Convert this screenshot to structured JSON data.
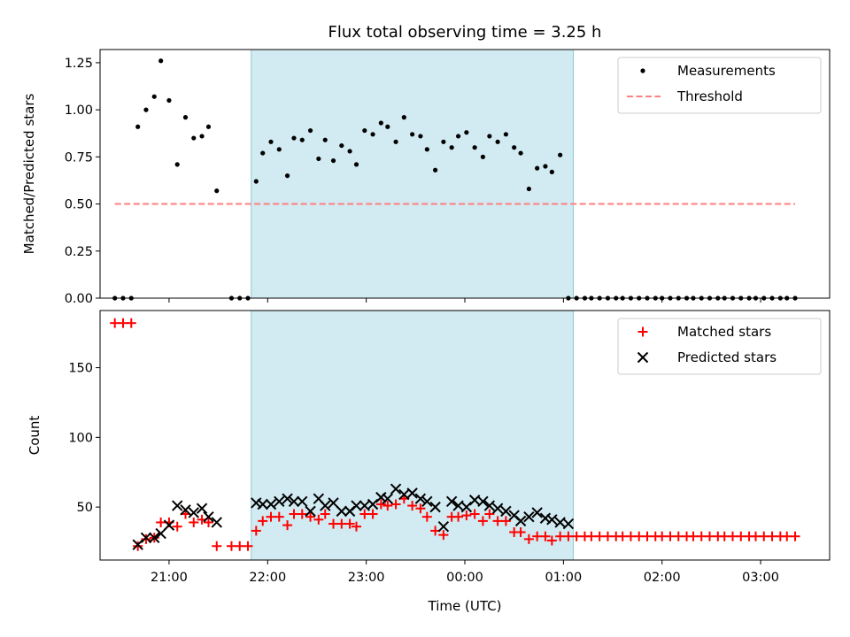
{
  "chart_data": [
    {
      "panel": "top",
      "type": "scatter",
      "title": "Flux total observing time = 3.25 h",
      "xlabel": "",
      "ylabel": "Matched/Predicted stars",
      "ylim": [
        0,
        1.32
      ],
      "yticks": [
        "0.00",
        "0.25",
        "0.50",
        "0.75",
        "1.00",
        "1.25"
      ],
      "xlim": [
        20.3,
        27.7
      ],
      "legend_position": "top-right",
      "shaded_interval": [
        "21:50",
        "01:06"
      ],
      "shade_color": "#add8e6",
      "series": [
        {
          "name": "Measurements",
          "color": "#000000",
          "marker": "dot",
          "points": [
            [
              "20:27",
              0
            ],
            [
              "20:32",
              0
            ],
            [
              "20:37",
              0
            ],
            [
              "20:41",
              0.91
            ],
            [
              "20:46",
              1.0
            ],
            [
              "20:51",
              1.07
            ],
            [
              "20:55",
              1.26
            ],
            [
              "21:00",
              1.05
            ],
            [
              "21:05",
              0.71
            ],
            [
              "21:10",
              0.96
            ],
            [
              "21:15",
              0.85
            ],
            [
              "21:20",
              0.86
            ],
            [
              "21:24",
              0.91
            ],
            [
              "21:29",
              0.57
            ],
            [
              "21:38",
              0
            ],
            [
              "21:43",
              0
            ],
            [
              "21:48",
              0
            ],
            [
              "21:53",
              0.62
            ],
            [
              "21:57",
              0.77
            ],
            [
              "22:02",
              0.83
            ],
            [
              "22:07",
              0.79
            ],
            [
              "22:12",
              0.65
            ],
            [
              "22:16",
              0.85
            ],
            [
              "22:21",
              0.84
            ],
            [
              "22:26",
              0.89
            ],
            [
              "22:31",
              0.74
            ],
            [
              "22:35",
              0.84
            ],
            [
              "22:40",
              0.73
            ],
            [
              "22:45",
              0.81
            ],
            [
              "22:50",
              0.78
            ],
            [
              "22:54",
              0.71
            ],
            [
              "22:59",
              0.89
            ],
            [
              "23:04",
              0.87
            ],
            [
              "23:09",
              0.93
            ],
            [
              "23:13",
              0.91
            ],
            [
              "23:18",
              0.83
            ],
            [
              "23:23",
              0.96
            ],
            [
              "23:28",
              0.87
            ],
            [
              "23:33",
              0.86
            ],
            [
              "23:37",
              0.79
            ],
            [
              "23:42",
              0.68
            ],
            [
              "23:47",
              0.83
            ],
            [
              "23:52",
              0.8
            ],
            [
              "23:56",
              0.86
            ],
            [
              "00:01",
              0.88
            ],
            [
              "00:06",
              0.8
            ],
            [
              "00:11",
              0.75
            ],
            [
              "00:15",
              0.86
            ],
            [
              "00:20",
              0.83
            ],
            [
              "00:25",
              0.87
            ],
            [
              "00:30",
              0.8
            ],
            [
              "00:34",
              0.77
            ],
            [
              "00:39",
              0.58
            ],
            [
              "00:44",
              0.69
            ],
            [
              "00:49",
              0.7
            ],
            [
              "00:53",
              0.67
            ],
            [
              "00:58",
              0.76
            ],
            [
              "01:03",
              0
            ],
            [
              "01:08",
              0
            ],
            [
              "01:13",
              0
            ],
            [
              "01:17",
              0
            ],
            [
              "01:22",
              0
            ],
            [
              "01:27",
              0
            ],
            [
              "01:32",
              0
            ],
            [
              "01:36",
              0
            ],
            [
              "01:41",
              0
            ],
            [
              "01:46",
              0
            ],
            [
              "01:51",
              0
            ],
            [
              "01:56",
              0
            ],
            [
              "02:00",
              0
            ],
            [
              "02:05",
              0
            ],
            [
              "02:10",
              0
            ],
            [
              "02:15",
              0
            ],
            [
              "02:19",
              0
            ],
            [
              "02:24",
              0
            ],
            [
              "02:29",
              0
            ],
            [
              "02:34",
              0
            ],
            [
              "02:38",
              0
            ],
            [
              "02:43",
              0
            ],
            [
              "02:48",
              0
            ],
            [
              "02:53",
              0
            ],
            [
              "02:57",
              0
            ],
            [
              "03:02",
              0
            ],
            [
              "03:07",
              0
            ],
            [
              "03:12",
              0
            ],
            [
              "03:16",
              0
            ],
            [
              "03:21",
              0
            ]
          ]
        },
        {
          "name": "Threshold",
          "color": "#ff7f7f",
          "style": "dashed",
          "points": [
            [
              "20:27",
              0.5
            ],
            [
              "03:21",
              0.5
            ]
          ]
        }
      ]
    },
    {
      "panel": "bottom",
      "type": "scatter",
      "title": "",
      "xlabel": "Time (UTC)",
      "ylabel": "Count",
      "ylim": [
        12,
        191
      ],
      "yticks": [
        "50",
        "100",
        "150"
      ],
      "xticks": [
        "21:00",
        "22:00",
        "23:00",
        "00:00",
        "01:00",
        "02:00",
        "03:00"
      ],
      "xlim": [
        20.3,
        27.7
      ],
      "legend_position": "top-right",
      "shaded_interval": [
        "21:50",
        "01:06"
      ],
      "shade_color": "#add8e6",
      "series": [
        {
          "name": "Matched stars",
          "color": "#ff0000",
          "marker": "plus",
          "points": [
            [
              "20:27",
              182
            ],
            [
              "20:32",
              182
            ],
            [
              "20:37",
              182
            ],
            [
              "20:41",
              22
            ],
            [
              "20:46",
              27
            ],
            [
              "20:51",
              28
            ],
            [
              "20:55",
              39
            ],
            [
              "21:00",
              39
            ],
            [
              "21:05",
              36
            ],
            [
              "21:10",
              45
            ],
            [
              "21:15",
              39
            ],
            [
              "21:20",
              41
            ],
            [
              "21:24",
              39
            ],
            [
              "21:29",
              22
            ],
            [
              "21:38",
              22
            ],
            [
              "21:43",
              22
            ],
            [
              "21:48",
              22
            ],
            [
              "21:53",
              33
            ],
            [
              "21:57",
              40
            ],
            [
              "22:02",
              43
            ],
            [
              "22:07",
              43
            ],
            [
              "22:12",
              37
            ],
            [
              "22:16",
              45
            ],
            [
              "22:21",
              45
            ],
            [
              "22:26",
              43
            ],
            [
              "22:31",
              41
            ],
            [
              "22:35",
              45
            ],
            [
              "22:40",
              38
            ],
            [
              "22:45",
              38
            ],
            [
              "22:50",
              38
            ],
            [
              "22:54",
              36
            ],
            [
              "22:59",
              45
            ],
            [
              "23:04",
              45
            ],
            [
              "23:09",
              52
            ],
            [
              "23:13",
              51
            ],
            [
              "23:18",
              52
            ],
            [
              "23:23",
              56
            ],
            [
              "23:28",
              51
            ],
            [
              "23:33",
              49
            ],
            [
              "23:37",
              43
            ],
            [
              "23:42",
              33
            ],
            [
              "23:47",
              30
            ],
            [
              "23:52",
              43
            ],
            [
              "23:56",
              43
            ],
            [
              "00:01",
              44
            ],
            [
              "00:06",
              45
            ],
            [
              "00:11",
              40
            ],
            [
              "00:15",
              45
            ],
            [
              "00:20",
              40
            ],
            [
              "00:25",
              40
            ],
            [
              "00:30",
              32
            ],
            [
              "00:34",
              32
            ],
            [
              "00:39",
              27
            ],
            [
              "00:44",
              29
            ],
            [
              "00:49",
              29
            ],
            [
              "00:53",
              26
            ],
            [
              "00:58",
              29
            ],
            [
              "01:03",
              29
            ],
            [
              "01:08",
              29
            ],
            [
              "01:13",
              29
            ],
            [
              "01:17",
              29
            ],
            [
              "01:22",
              29
            ],
            [
              "01:27",
              29
            ],
            [
              "01:32",
              29
            ],
            [
              "01:36",
              29
            ],
            [
              "01:41",
              29
            ],
            [
              "01:46",
              29
            ],
            [
              "01:51",
              29
            ],
            [
              "01:56",
              29
            ],
            [
              "02:00",
              29
            ],
            [
              "02:05",
              29
            ],
            [
              "02:10",
              29
            ],
            [
              "02:15",
              29
            ],
            [
              "02:19",
              29
            ],
            [
              "02:24",
              29
            ],
            [
              "02:29",
              29
            ],
            [
              "02:34",
              29
            ],
            [
              "02:38",
              29
            ],
            [
              "02:43",
              29
            ],
            [
              "02:48",
              29
            ],
            [
              "02:53",
              29
            ],
            [
              "02:57",
              29
            ],
            [
              "03:02",
              29
            ],
            [
              "03:07",
              29
            ],
            [
              "03:12",
              29
            ],
            [
              "03:16",
              29
            ],
            [
              "03:21",
              29
            ]
          ]
        },
        {
          "name": "Predicted stars",
          "color": "#000000",
          "marker": "cross",
          "points": [
            [
              "20:41",
              23
            ],
            [
              "20:46",
              28
            ],
            [
              "20:51",
              28
            ],
            [
              "20:55",
              31
            ],
            [
              "21:00",
              37
            ],
            [
              "21:05",
              51
            ],
            [
              "21:10",
              48
            ],
            [
              "21:15",
              46
            ],
            [
              "21:20",
              49
            ],
            [
              "21:24",
              43
            ],
            [
              "21:29",
              39
            ],
            [
              "21:53",
              53
            ],
            [
              "21:57",
              52
            ],
            [
              "22:02",
              52
            ],
            [
              "22:07",
              54
            ],
            [
              "22:12",
              56
            ],
            [
              "22:16",
              54
            ],
            [
              "22:21",
              54
            ],
            [
              "22:26",
              47
            ],
            [
              "22:31",
              56
            ],
            [
              "22:35",
              51
            ],
            [
              "22:40",
              53
            ],
            [
              "22:45",
              47
            ],
            [
              "22:50",
              47
            ],
            [
              "22:54",
              51
            ],
            [
              "22:59",
              51
            ],
            [
              "23:04",
              52
            ],
            [
              "23:09",
              57
            ],
            [
              "23:13",
              56
            ],
            [
              "23:18",
              63
            ],
            [
              "23:23",
              59
            ],
            [
              "23:28",
              60
            ],
            [
              "23:33",
              56
            ],
            [
              "23:37",
              54
            ],
            [
              "23:42",
              50
            ],
            [
              "23:47",
              36
            ],
            [
              "23:52",
              54
            ],
            [
              "23:56",
              51
            ],
            [
              "00:01",
              50
            ],
            [
              "00:06",
              55
            ],
            [
              "00:11",
              54
            ],
            [
              "00:15",
              51
            ],
            [
              "00:20",
              49
            ],
            [
              "00:25",
              47
            ],
            [
              "00:30",
              44
            ],
            [
              "00:34",
              40
            ],
            [
              "00:39",
              43
            ],
            [
              "00:44",
              46
            ],
            [
              "00:49",
              42
            ],
            [
              "00:53",
              41
            ],
            [
              "00:58",
              39
            ],
            [
              "01:03",
              38
            ]
          ]
        }
      ]
    }
  ]
}
